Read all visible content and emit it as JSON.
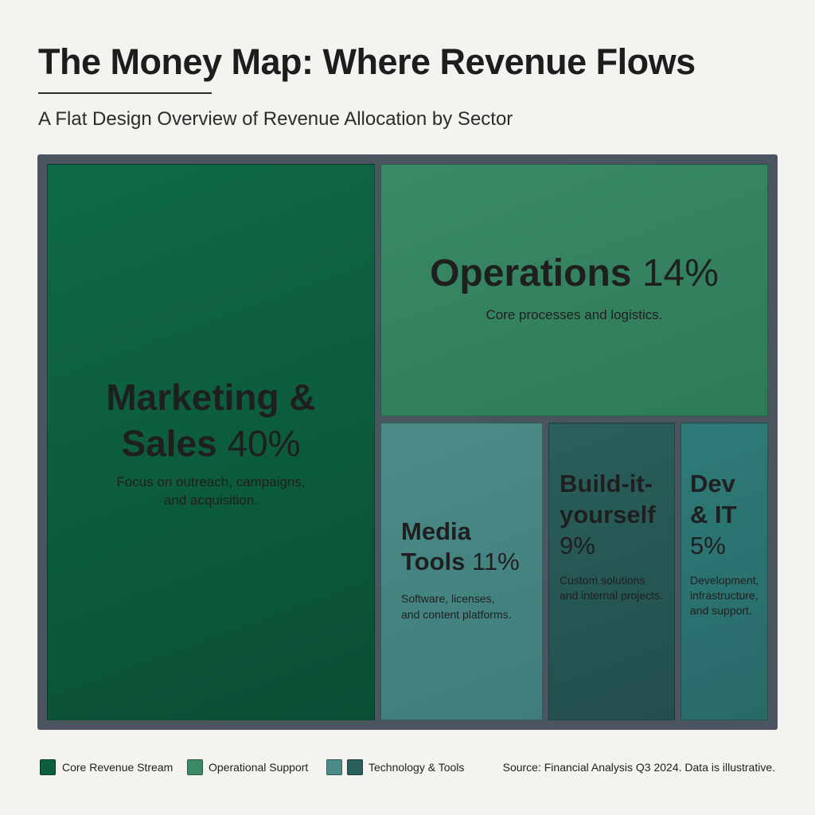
{
  "header": {
    "title": "The Money Map: Where Revenue Flows",
    "subtitle": "A Flat Design Overview of Revenue Allocation by Sector"
  },
  "chart_data": {
    "type": "treemap",
    "title": "The Money Map: Where Revenue Flows",
    "subtitle": "A Flat Design Overview of Revenue Allocation by Sector",
    "unit": "%",
    "items": [
      {
        "name_line1": "Marketing &",
        "name_line2": "Sales",
        "percent": "40%",
        "value": 40,
        "desc_line1": "Focus on outreach, campaigns,",
        "desc_line2": "and acquisition.",
        "group": "Core Revenue Stream",
        "color": "#0d5e3f"
      },
      {
        "name_line1": "Operations",
        "percent": "14%",
        "value": 14,
        "desc_line1": "Core processes and logistics.",
        "group": "Operational Support",
        "color": "#348461"
      },
      {
        "name_line1": "Media",
        "name_line2": "Tools",
        "percent": "11%",
        "value": 11,
        "desc_line1": "Software, licenses,",
        "desc_line2": "and content platforms.",
        "group": "Technology & Tools",
        "color": "#478583"
      },
      {
        "name_line1": "Build-it-",
        "name_line2": "yourself",
        "percent": "9%",
        "value": 9,
        "desc_line1": "Custom solutions",
        "desc_line2": "and internal projects.",
        "group": "Technology & Tools",
        "color": "#275753"
      },
      {
        "name_line1": "Dev",
        "name_line2": "& IT",
        "percent": "5%",
        "value": 5,
        "desc_line1": "Development,",
        "desc_line2": "infrastructure,",
        "desc_line3": "and support.",
        "group": "Technology & Tools",
        "color": "#2c7371"
      }
    ],
    "legend": [
      {
        "label": "Core Revenue Stream",
        "colors": [
          "#0d5e3f"
        ]
      },
      {
        "label": "Operational Support",
        "colors": [
          "#3a8a66"
        ]
      },
      {
        "label": "Technology & Tools",
        "colors": [
          "#4d8b88",
          "#2a5f5b"
        ]
      }
    ]
  },
  "footer": {
    "source": "Source: Financial Analysis Q3 2024. Data is illustrative."
  }
}
